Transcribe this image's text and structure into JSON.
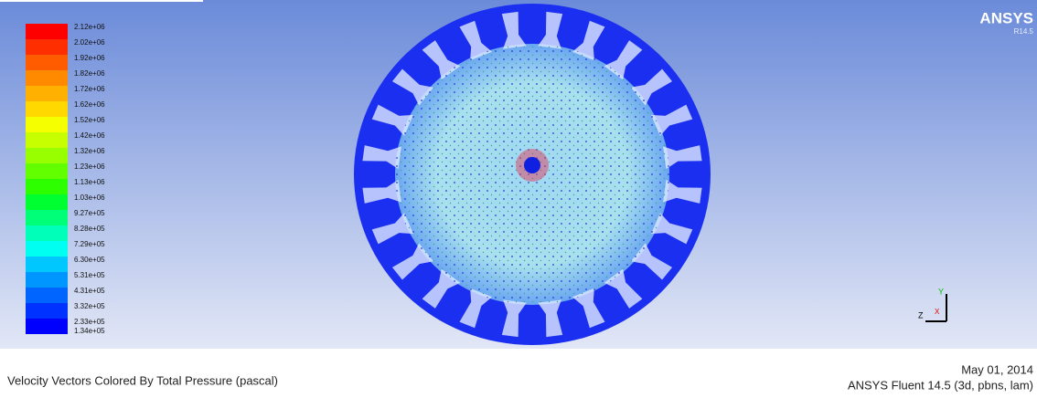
{
  "logo": {
    "title": "ANSYS",
    "version": "R14.5"
  },
  "legend": {
    "labels": [
      "2.12e+06",
      "2.02e+06",
      "1.92e+06",
      "1.82e+06",
      "1.72e+06",
      "1.62e+06",
      "1.52e+06",
      "1.42e+06",
      "1.32e+06",
      "1.23e+06",
      "1.13e+06",
      "1.03e+06",
      "9.27e+05",
      "8.28e+05",
      "7.29e+05",
      "6.30e+05",
      "5.31e+05",
      "4.31e+05",
      "3.32e+05",
      "2.33e+05",
      "1.34e+05"
    ],
    "colors": [
      "#ff0000",
      "#ff2e00",
      "#ff5c00",
      "#ff8a00",
      "#ffb000",
      "#ffd800",
      "#f6ff00",
      "#c8ff00",
      "#98ff00",
      "#62ff00",
      "#2eff00",
      "#00ff30",
      "#00ff78",
      "#00ffb8",
      "#00fff0",
      "#00c8ff",
      "#0096ff",
      "#0064ff",
      "#0032ff",
      "#0000ff"
    ]
  },
  "axes": {
    "y": "Y",
    "z": "Z",
    "x": "X"
  },
  "footer": {
    "caption": "Velocity Vectors Colored By Total Pressure (pascal)",
    "date": "May 01, 2014",
    "version": "ANSYS Fluent 14.5 (3d, pbns, lam)"
  }
}
